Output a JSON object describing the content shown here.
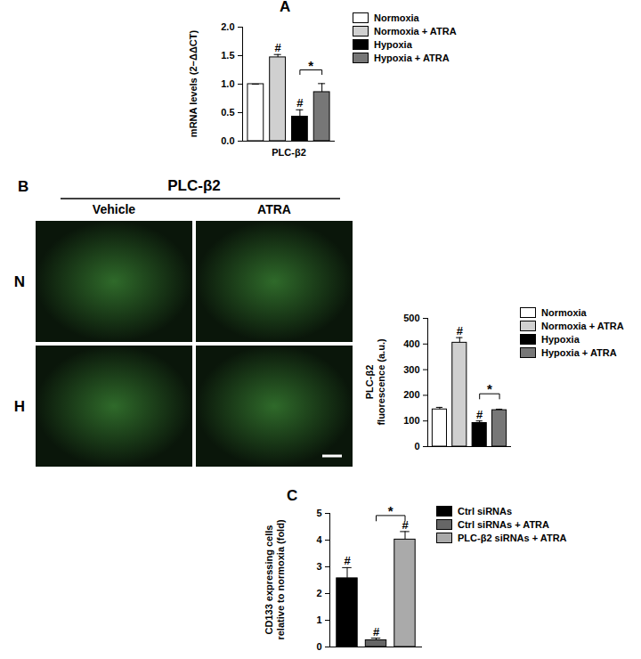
{
  "chart_data": [
    {
      "type": "bar",
      "panel": "A",
      "ylabel": [
        "mRNA levels (2−ΔΔCT)"
      ],
      "categories": [
        "PLC-β2"
      ],
      "ylim": [
        0,
        2
      ],
      "yticks": [
        {
          "value": 0,
          "label": "0.0"
        },
        {
          "value": 0.5,
          "label": "0.5"
        },
        {
          "value": 1,
          "label": "1.0"
        },
        {
          "value": 1.5,
          "label": "1.5"
        },
        {
          "value": 2,
          "label": "2.0"
        }
      ],
      "legend": "right",
      "series": [
        {
          "name": "Normoxia",
          "color": "#ffffff",
          "values": [
            1.0
          ],
          "errors": [
            0
          ]
        },
        {
          "name": "Normoxia + ATRA",
          "color": "#d0d0d0",
          "values": [
            1.47
          ],
          "errors": [
            0.05
          ]
        },
        {
          "name": "Hypoxia",
          "color": "#000000",
          "values": [
            0.43
          ],
          "errors": [
            0.12
          ]
        },
        {
          "name": "Hypoxia + ATRA",
          "color": "#777777",
          "values": [
            0.86
          ],
          "errors": [
            0.15
          ]
        }
      ],
      "annotations": [
        {
          "text": "#",
          "series": "Normoxia + ATRA"
        },
        {
          "text": "#",
          "series": "Hypoxia"
        },
        {
          "text": "*",
          "between": [
            "Hypoxia",
            "Hypoxia + ATRA"
          ]
        }
      ]
    },
    {
      "type": "image",
      "panel": "B",
      "title": "PLC-β2",
      "columns": [
        "Vehicle",
        "ATRA"
      ],
      "rows": [
        "N",
        "H"
      ]
    },
    {
      "type": "bar",
      "ylabel": [
        "PLC-β2",
        "fluorescence (a.u.)"
      ],
      "categories": [
        null
      ],
      "ylim": [
        0,
        500
      ],
      "yticks": [
        0,
        100,
        200,
        300,
        400,
        500
      ],
      "legend": "right",
      "series": [
        {
          "name": "Normoxia",
          "color": "#ffffff",
          "values": [
            145
          ],
          "errors": [
            8
          ]
        },
        {
          "name": "Normoxia + ATRA",
          "color": "#d0d0d0",
          "values": [
            405
          ],
          "errors": [
            20
          ]
        },
        {
          "name": "Hypoxia",
          "color": "#000000",
          "values": [
            92
          ],
          "errors": [
            8
          ]
        },
        {
          "name": "Hypoxia + ATRA",
          "color": "#777777",
          "values": [
            142
          ],
          "errors": [
            4
          ]
        }
      ],
      "annotations": [
        {
          "text": "#",
          "series": "Normoxia + ATRA"
        },
        {
          "text": "#",
          "series": "Hypoxia"
        },
        {
          "text": "*",
          "between": [
            "Hypoxia",
            "Hypoxia + ATRA"
          ]
        }
      ]
    },
    {
      "type": "bar",
      "panel": "C",
      "ylabel": [
        "CD133 expressing cells",
        "relative to normoxia (fold)"
      ],
      "categories": [
        null
      ],
      "ylim": [
        0,
        5
      ],
      "yticks": [
        0,
        1,
        2,
        3,
        4,
        5
      ],
      "legend": "right",
      "series": [
        {
          "name": "Ctrl siRNAs",
          "color": "#000000",
          "values": [
            2.57
          ],
          "errors": [
            0.4
          ]
        },
        {
          "name": "Ctrl siRNAs + ATRA",
          "color": "#666666",
          "values": [
            0.25
          ],
          "errors": [
            0.08
          ]
        },
        {
          "name": "PLC-β2 siRNAs + ATRA",
          "color": "#aaaaaa",
          "values": [
            4.02
          ],
          "errors": [
            0.3
          ]
        }
      ],
      "annotations": [
        {
          "text": "#",
          "series": "Ctrl siRNAs"
        },
        {
          "text": "#",
          "series": "Ctrl siRNAs + ATRA"
        },
        {
          "text": "#",
          "series": "PLC-β2 siRNAs + ATRA"
        },
        {
          "text": "*",
          "between": [
            "Ctrl siRNAs + ATRA",
            "PLC-β2 siRNAs + ATRA"
          ]
        }
      ]
    }
  ]
}
